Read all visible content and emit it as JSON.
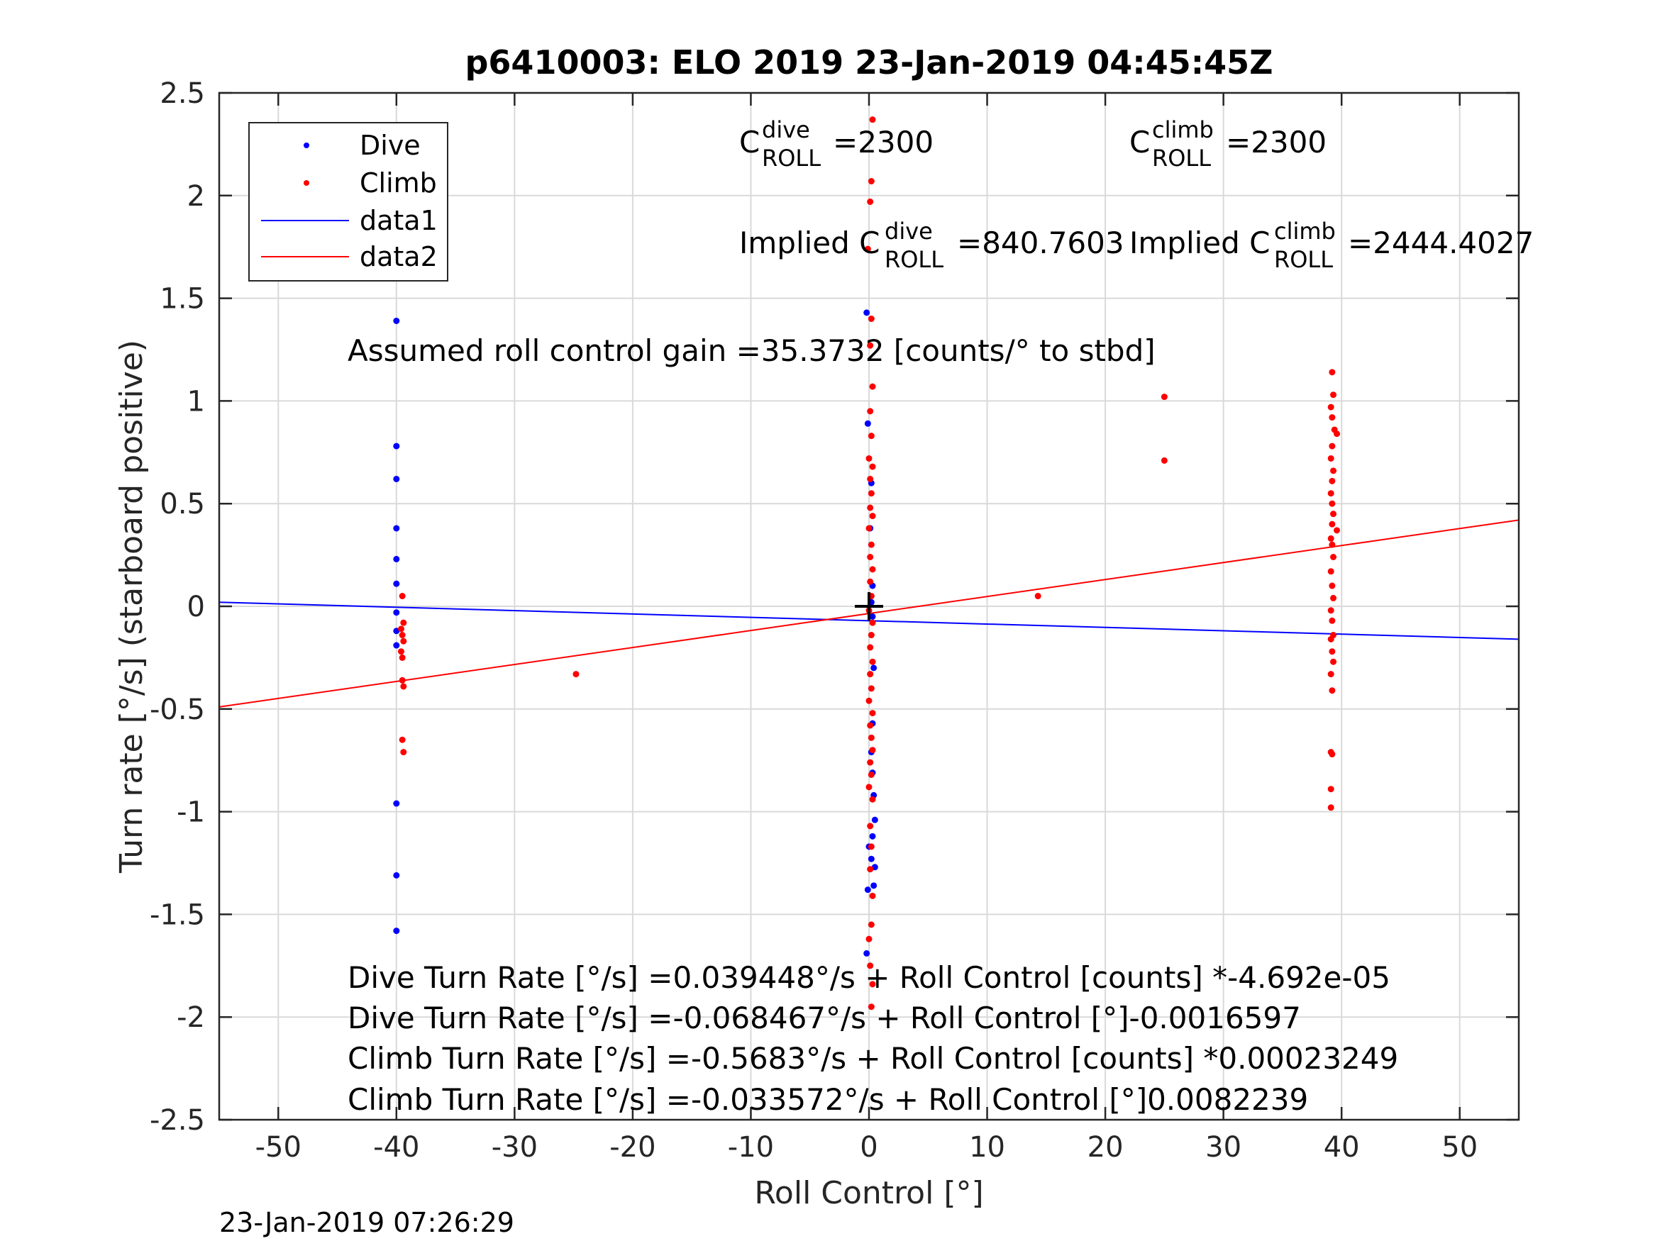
{
  "chart_data": {
    "type": "scatter",
    "title": "p6410003: ELO 2019 23-Jan-2019 04:45:45Z",
    "xlabel": "Roll Control [°]",
    "ylabel": "Turn rate [°/s] (starboard positive)",
    "xlim": [
      -55,
      55
    ],
    "ylim": [
      -2.5,
      2.5
    ],
    "xticks": [
      -50,
      -40,
      -30,
      -20,
      -10,
      0,
      10,
      20,
      30,
      40,
      50
    ],
    "yticks": [
      2.5,
      2,
      1.5,
      1,
      0.5,
      0,
      -0.5,
      -1,
      -1.5,
      -2,
      -2.5
    ],
    "ytick_labels": [
      "2.5",
      "2",
      "1.5",
      "1",
      "0.5",
      "0",
      "-0.5",
      "-1",
      "-1.5",
      "-2",
      "-2.5"
    ],
    "grid": true,
    "legend_position": "top-left",
    "legend": [
      {
        "label": "Dive",
        "marker": "dot",
        "color": "#0000ff"
      },
      {
        "label": "Climb",
        "marker": "dot",
        "color": "#ff0000"
      },
      {
        "label": "data1",
        "marker": "line",
        "color": "#0000ff"
      },
      {
        "label": "data2",
        "marker": "line",
        "color": "#ff0000"
      }
    ],
    "series": [
      {
        "name": "Dive",
        "color": "#0000ff",
        "points": [
          [
            -40,
            1.39
          ],
          [
            -40,
            0.78
          ],
          [
            -40,
            0.62
          ],
          [
            -40,
            0.38
          ],
          [
            -40,
            0.23
          ],
          [
            -40,
            0.11
          ],
          [
            -40,
            -0.03
          ],
          [
            -40,
            -0.12
          ],
          [
            -40,
            -0.19
          ],
          [
            -40,
            -0.96
          ],
          [
            -40,
            -1.31
          ],
          [
            -40,
            -1.58
          ],
          [
            -0.2,
            1.43
          ],
          [
            -0.1,
            0.89
          ],
          [
            0.2,
            0.6
          ],
          [
            0.1,
            0.38
          ],
          [
            0.3,
            0.1
          ],
          [
            0.2,
            0.02
          ],
          [
            0.3,
            -0.05
          ],
          [
            0.4,
            -0.3
          ],
          [
            0.3,
            -0.57
          ],
          [
            0.2,
            -0.71
          ],
          [
            0.3,
            -0.81
          ],
          [
            0.4,
            -0.92
          ],
          [
            0.5,
            -1.04
          ],
          [
            0.3,
            -1.12
          ],
          [
            0.0,
            -1.17
          ],
          [
            0.2,
            -1.23
          ],
          [
            0.5,
            -1.27
          ],
          [
            0.4,
            -1.36
          ],
          [
            -0.1,
            -1.38
          ],
          [
            -0.2,
            -1.69
          ]
        ]
      },
      {
        "name": "Climb",
        "color": "#ff0000",
        "points": [
          [
            -39.5,
            0.05
          ],
          [
            -39.4,
            -0.08
          ],
          [
            -39.6,
            -0.11
          ],
          [
            -39.5,
            -0.14
          ],
          [
            -39.4,
            -0.17
          ],
          [
            -39.6,
            -0.22
          ],
          [
            -39.5,
            -0.25
          ],
          [
            -39.5,
            -0.36
          ],
          [
            -39.4,
            -0.39
          ],
          [
            -39.5,
            -0.65
          ],
          [
            -39.4,
            -0.71
          ],
          [
            -24.8,
            -0.33
          ],
          [
            0.3,
            2.37
          ],
          [
            0.2,
            2.07
          ],
          [
            0.1,
            1.97
          ],
          [
            -0.1,
            1.74
          ],
          [
            0.2,
            1.4
          ],
          [
            0.1,
            1.27
          ],
          [
            0.3,
            1.07
          ],
          [
            0.1,
            0.95
          ],
          [
            0.2,
            0.83
          ],
          [
            0.0,
            0.72
          ],
          [
            0.3,
            0.68
          ],
          [
            0.1,
            0.62
          ],
          [
            0.2,
            0.55
          ],
          [
            0.1,
            0.48
          ],
          [
            0.3,
            0.44
          ],
          [
            0.0,
            0.38
          ],
          [
            0.2,
            0.3
          ],
          [
            0.1,
            0.24
          ],
          [
            0.3,
            0.18
          ],
          [
            0.1,
            0.12
          ],
          [
            0.2,
            0.05
          ],
          [
            0.0,
            -0.02
          ],
          [
            0.3,
            -0.08
          ],
          [
            0.2,
            -0.14
          ],
          [
            0.1,
            -0.2
          ],
          [
            0.3,
            -0.27
          ],
          [
            0.1,
            -0.33
          ],
          [
            0.2,
            -0.4
          ],
          [
            0.0,
            -0.46
          ],
          [
            0.3,
            -0.52
          ],
          [
            0.1,
            -0.58
          ],
          [
            0.2,
            -0.64
          ],
          [
            0.3,
            -0.7
          ],
          [
            0.1,
            -0.76
          ],
          [
            0.2,
            -0.82
          ],
          [
            0.0,
            -0.88
          ],
          [
            0.3,
            -0.94
          ],
          [
            0.1,
            -1.07
          ],
          [
            0.2,
            -1.17
          ],
          [
            0.1,
            -1.28
          ],
          [
            0.3,
            -1.41
          ],
          [
            0.2,
            -1.55
          ],
          [
            0.0,
            -1.62
          ],
          [
            0.1,
            -1.75
          ],
          [
            0.3,
            -1.84
          ],
          [
            0.2,
            -1.95
          ],
          [
            14.3,
            0.05
          ],
          [
            25.0,
            1.02
          ],
          [
            25.0,
            0.71
          ],
          [
            39.2,
            1.14
          ],
          [
            39.3,
            1.03
          ],
          [
            39.1,
            0.97
          ],
          [
            39.2,
            0.92
          ],
          [
            39.4,
            0.86
          ],
          [
            39.6,
            0.84
          ],
          [
            39.2,
            0.78
          ],
          [
            39.1,
            0.72
          ],
          [
            39.3,
            0.66
          ],
          [
            39.2,
            0.61
          ],
          [
            39.1,
            0.55
          ],
          [
            39.2,
            0.5
          ],
          [
            39.3,
            0.45
          ],
          [
            39.2,
            0.4
          ],
          [
            39.6,
            0.37
          ],
          [
            39.1,
            0.33
          ],
          [
            39.2,
            0.3
          ],
          [
            39.3,
            0.24
          ],
          [
            39.1,
            0.17
          ],
          [
            39.2,
            0.1
          ],
          [
            39.3,
            0.04
          ],
          [
            39.1,
            -0.02
          ],
          [
            39.2,
            -0.07
          ],
          [
            39.3,
            -0.14
          ],
          [
            39.1,
            -0.16
          ],
          [
            39.2,
            -0.22
          ],
          [
            39.3,
            -0.27
          ],
          [
            39.1,
            -0.33
          ],
          [
            39.2,
            -0.41
          ],
          [
            39.1,
            -0.71
          ],
          [
            39.2,
            -0.72
          ],
          [
            39.1,
            -0.89
          ],
          [
            39.1,
            -0.98
          ]
        ]
      }
    ],
    "fit_lines": [
      {
        "name": "data1",
        "color": "#0000ff",
        "x": [
          -55,
          55
        ],
        "y": [
          0.02,
          -0.16
        ]
      },
      {
        "name": "data2",
        "color": "#ff0000",
        "x": [
          -55,
          55
        ],
        "y": [
          -0.49,
          0.42
        ]
      }
    ],
    "center_marker": {
      "x": 0,
      "y": 0,
      "symbol": "+",
      "color": "#000000"
    },
    "annotations": {
      "c_roll_dive": {
        "prefix": "C",
        "sup": "dive",
        "sub": "ROLL",
        "value": "=2300"
      },
      "c_roll_climb": {
        "prefix": "C",
        "sup": "climb",
        "sub": "ROLL",
        "value": "=2300"
      },
      "implied_dive": {
        "prefix": "Implied C",
        "sup": "dive",
        "sub": "ROLL",
        "value": "=840.7603"
      },
      "implied_climb": {
        "prefix": "Implied C",
        "sup": "climb",
        "sub": "ROLL",
        "value": "=2444.4027"
      },
      "gain": "Assumed roll control gain =35.3732 [counts/° to stbd]",
      "equations": [
        "Dive Turn Rate [°/s] =0.039448°/s + Roll Control [counts] *-4.692e-05",
        "Dive Turn Rate [°/s] =-0.068467°/s + Roll Control [°]-0.0016597",
        "Climb Turn Rate [°/s] =-0.5683°/s + Roll Control [counts] *0.00023249",
        "Climb Turn Rate [°/s] =-0.033572°/s + Roll Control [°]0.0082239"
      ]
    },
    "footer_timestamp": "23-Jan-2019 07:26:29"
  }
}
